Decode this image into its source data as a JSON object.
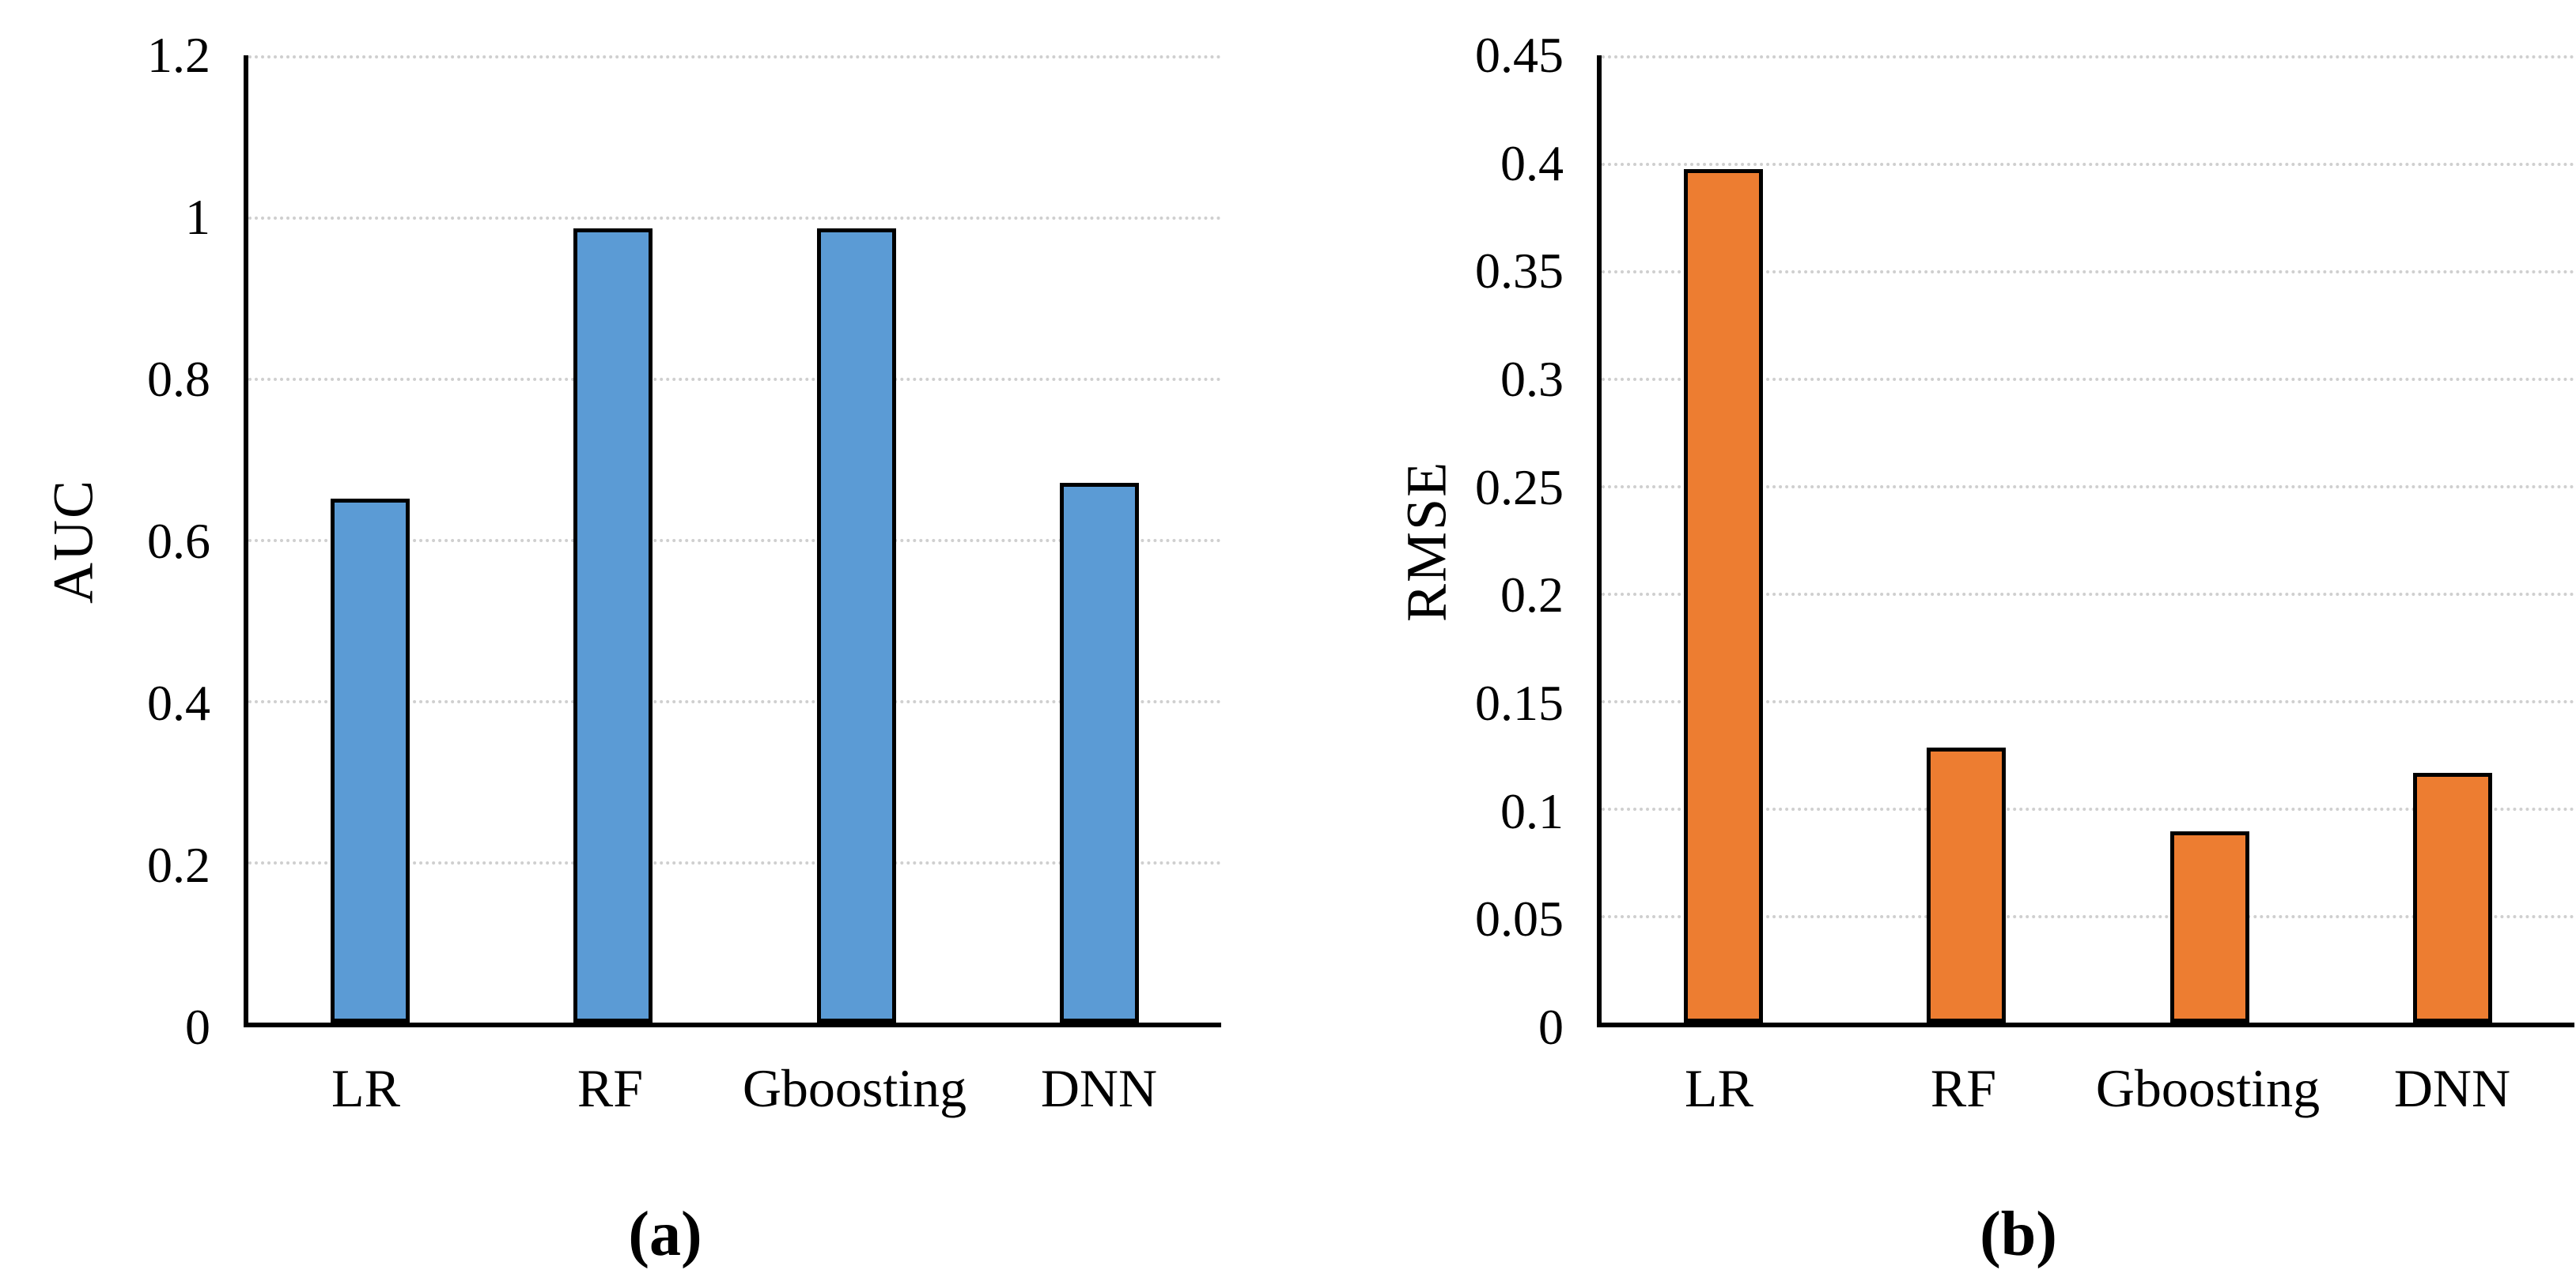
{
  "page": {
    "background": "#FFFFFF"
  },
  "chart_data": [
    {
      "type": "bar",
      "panel": "a",
      "caption": "(a)",
      "title": "",
      "xlabel": "",
      "ylabel": "AUC",
      "categories": [
        "LR",
        "RF",
        "Gboosting",
        "DNN"
      ],
      "values": [
        0.65,
        0.985,
        0.985,
        0.67
      ],
      "ylim": [
        0,
        1.2
      ],
      "ytick_interval": 0.2,
      "ytick_labels_bottom_to_top": [
        "0",
        "0.2",
        "0.4",
        "0.6",
        "0.8",
        "1",
        "1.2"
      ],
      "grid": true,
      "legend": false,
      "bar_color": "#5B9BD5",
      "bar_border_color": "#000000",
      "gridline_color": "#CFCFCF",
      "axis_color": "#000000"
    },
    {
      "type": "bar",
      "panel": "b",
      "caption": "(b)",
      "title": "",
      "xlabel": "",
      "ylabel": "RMSE",
      "categories": [
        "LR",
        "RF",
        "Gboosting",
        "DNN"
      ],
      "values": [
        0.397,
        0.128,
        0.089,
        0.116
      ],
      "ylim": [
        0,
        0.45
      ],
      "ytick_interval": 0.05,
      "ytick_labels_bottom_to_top": [
        "0",
        "0.05",
        "0.1",
        "0.15",
        "0.2",
        "0.25",
        "0.3",
        "0.35",
        "0.4",
        "0.45"
      ],
      "grid": true,
      "legend": false,
      "bar_color": "#ED7D31",
      "bar_border_color": "#000000",
      "gridline_color": "#CFCFCF",
      "axis_color": "#000000"
    }
  ]
}
